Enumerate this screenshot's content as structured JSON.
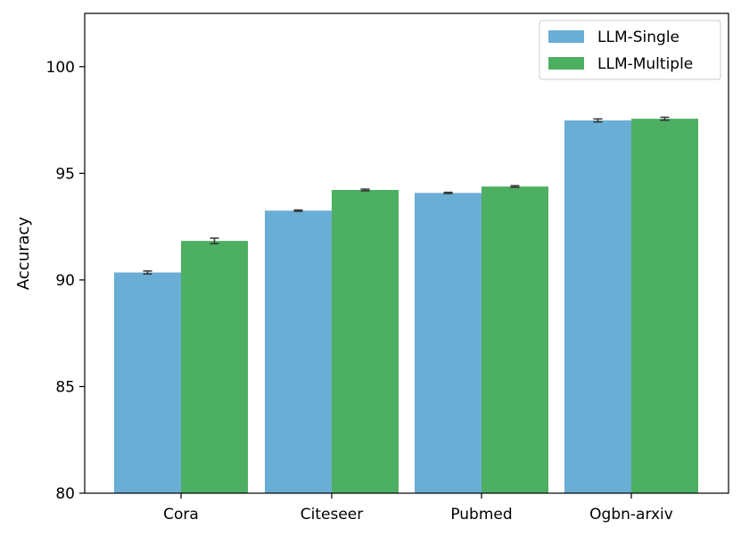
{
  "chart_data": {
    "type": "bar",
    "categories": [
      "Cora",
      "Citeseer",
      "Pubmed",
      "Ogbn-arxiv"
    ],
    "series": [
      {
        "name": "LLM-Single",
        "color": "#6aadd5",
        "values": [
          90.35,
          93.25,
          94.08,
          97.48
        ],
        "errors": [
          0.07,
          0.03,
          0.03,
          0.07
        ]
      },
      {
        "name": "LLM-Multiple",
        "color": "#4daf62",
        "values": [
          91.83,
          94.22,
          94.38,
          97.56
        ],
        "errors": [
          0.13,
          0.04,
          0.04,
          0.07
        ]
      }
    ],
    "ylabel": "Accuracy",
    "xlabel": "",
    "ylim": [
      80,
      102.5
    ],
    "yticks": [
      80,
      85,
      90,
      95,
      100
    ],
    "grid": false,
    "legend": "top-right"
  }
}
